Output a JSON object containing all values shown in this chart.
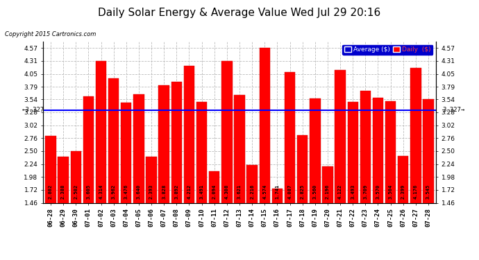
{
  "title": "Daily Solar Energy & Average Value Wed Jul 29 20:16",
  "copyright": "Copyright 2015 Cartronics.com",
  "average_label": "Average ($)",
  "daily_label": "Daily  ($)",
  "average_value": 3.327,
  "categories": [
    "06-28",
    "06-29",
    "06-30",
    "07-01",
    "07-02",
    "07-03",
    "07-04",
    "07-05",
    "07-06",
    "07-07",
    "07-08",
    "07-09",
    "07-10",
    "07-11",
    "07-12",
    "07-13",
    "07-14",
    "07-15",
    "07-16",
    "07-17",
    "07-18",
    "07-19",
    "07-20",
    "07-21",
    "07-22",
    "07-23",
    "07-24",
    "07-25",
    "07-26",
    "07-27",
    "07-28"
  ],
  "values": [
    2.802,
    2.388,
    2.502,
    3.605,
    4.314,
    3.962,
    3.476,
    3.64,
    2.393,
    3.828,
    3.892,
    4.212,
    3.491,
    2.094,
    4.308,
    3.621,
    2.216,
    4.574,
    1.741,
    4.087,
    2.825,
    3.56,
    2.196,
    4.122,
    3.493,
    3.709,
    3.57,
    3.504,
    2.399,
    4.176,
    3.545
  ],
  "bar_color": "#FF0000",
  "bar_edge_color": "#FF0000",
  "avg_line_color": "#0000FF",
  "background_color": "#FFFFFF",
  "plot_bg_color": "#FFFFFF",
  "grid_color": "#BBBBBB",
  "ylim_min": 1.46,
  "ylim_max": 4.7,
  "yticks": [
    1.46,
    1.72,
    1.98,
    2.24,
    2.5,
    2.76,
    3.02,
    3.28,
    3.54,
    3.79,
    4.05,
    4.31,
    4.57
  ],
  "bar_value_fontsize": 5.0,
  "axis_tick_fontsize": 6.5,
  "title_fontsize": 11,
  "avg_label_fontsize": 6.5
}
